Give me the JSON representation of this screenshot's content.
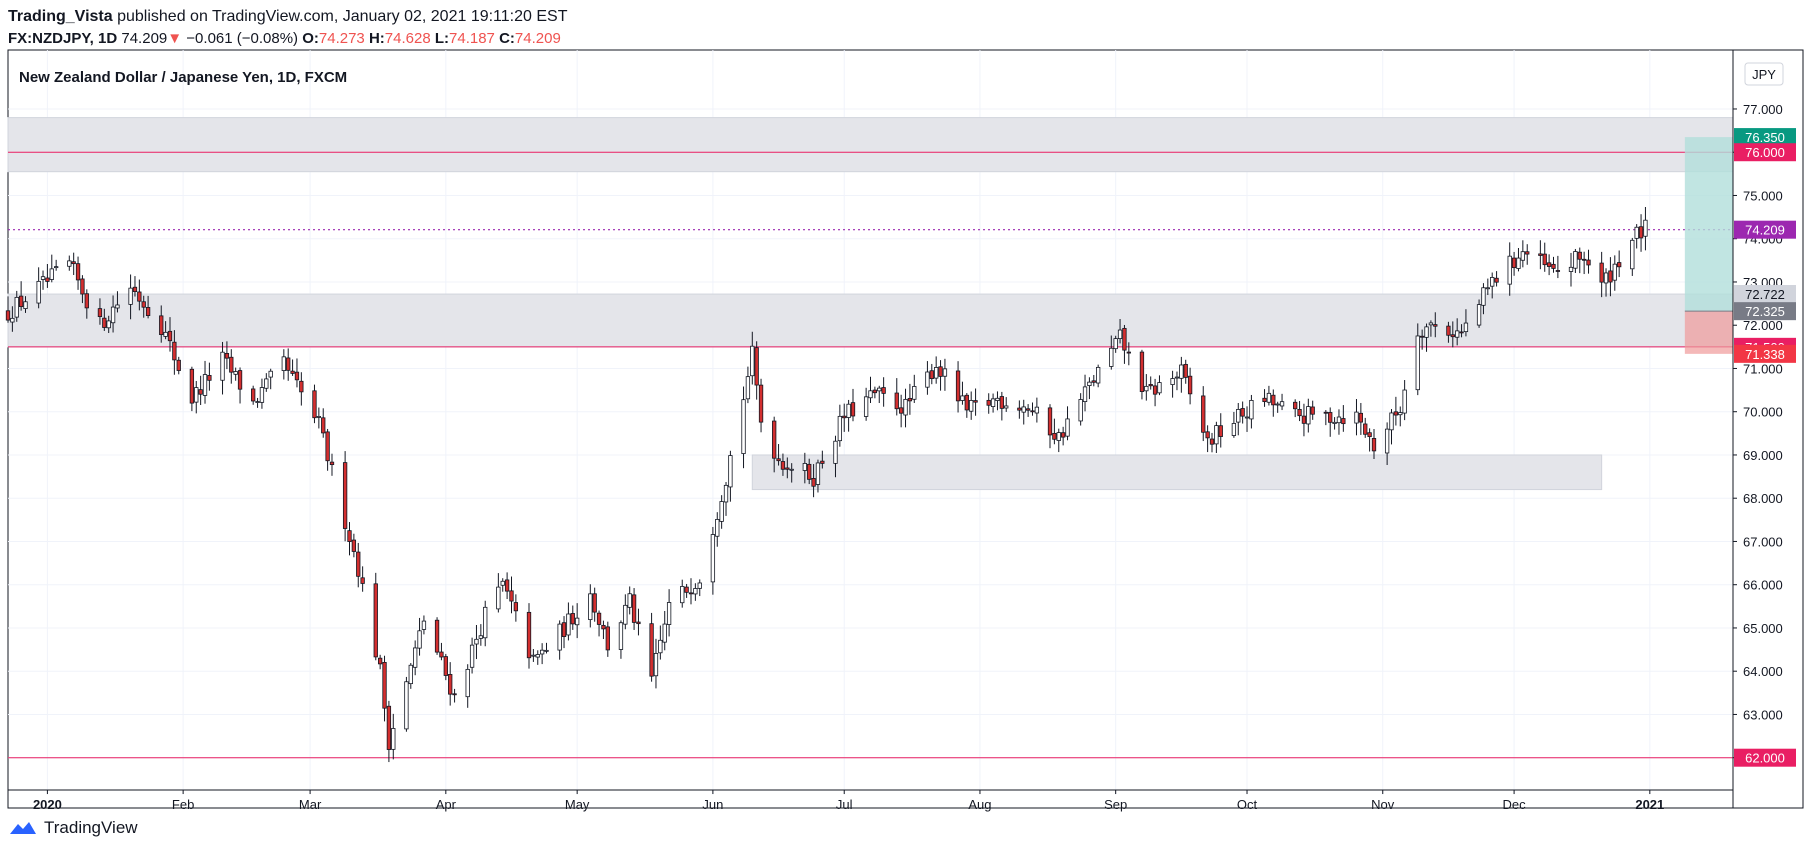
{
  "header": {
    "author": "Trading_Vista",
    "published_text": "published on TradingView.com, January 02, 2021 19:11:20 EST",
    "symbol": "FX:NZDJPY, 1D",
    "last": "74.209",
    "change_arrow": "▼",
    "change": "−0.061 (−0.08%)",
    "o_label": "O:",
    "o_value": "74.273",
    "h_label": "H:",
    "h_value": "74.628",
    "l_label": "L:",
    "l_value": "74.187",
    "c_label": "C:",
    "c_value": "74.209"
  },
  "chart_title": "New Zealand Dollar / Japanese Yen, 1D, FXCM",
  "currency_button": "JPY",
  "footer": {
    "brand": "TradingView",
    "logo_icon": "tradingview-logo-icon"
  },
  "colors": {
    "up_fill": "#ffffff",
    "down_fill": "#d32f2f",
    "wick": "#131722",
    "zone": "#e4e5ea",
    "level": "#e91e63",
    "current": "#9c27b0",
    "target_green": "#089981",
    "projection_fill": "#b2dfdb",
    "stop_fill": "#ef9a9a",
    "gray_tag": "#787b86"
  },
  "chart_data": {
    "type": "candlestick",
    "title": "New Zealand Dollar / Japanese Yen, 1D, FXCM",
    "yaxis_ticks": [
      "77.000",
      "76.000",
      "75.000",
      "74.000",
      "73.000",
      "72.000",
      "71.000",
      "70.000",
      "69.000",
      "68.000",
      "67.000",
      "66.000",
      "65.000",
      "64.000",
      "63.000",
      "62.000"
    ],
    "ylim": [
      61.6,
      77.3
    ],
    "xlim": [
      "2019-12-23",
      "2021-01-20"
    ],
    "x_ticks": [
      {
        "label": "2020",
        "date": "2020-01-01"
      },
      {
        "label": "Feb",
        "date": "2020-02-01"
      },
      {
        "label": "Mar",
        "date": "2020-03-01"
      },
      {
        "label": "Apr",
        "date": "2020-04-01"
      },
      {
        "label": "May",
        "date": "2020-05-01"
      },
      {
        "label": "Jun",
        "date": "2020-06-01"
      },
      {
        "label": "Jul",
        "date": "2020-07-01"
      },
      {
        "label": "Aug",
        "date": "2020-08-01"
      },
      {
        "label": "Sep",
        "date": "2020-09-01"
      },
      {
        "label": "Oct",
        "date": "2020-10-01"
      },
      {
        "label": "Nov",
        "date": "2020-11-01"
      },
      {
        "label": "Dec",
        "date": "2020-12-01"
      },
      {
        "label": "2021",
        "date": "2021-01-01"
      }
    ],
    "horizontal_levels": [
      {
        "label": "76.000",
        "value": 76.0
      },
      {
        "label": "71.500",
        "value": 71.5
      },
      {
        "label": "62.000",
        "value": 62.0
      }
    ],
    "zones": [
      {
        "from": 75.55,
        "to": 76.8,
        "start": "2019-12-23",
        "end": "2021-01-20"
      },
      {
        "from": 71.5,
        "to": 72.72,
        "start": "2019-12-23",
        "end": "2021-01-20"
      },
      {
        "from": 68.2,
        "to": 69.0,
        "start": "2020-06-10",
        "end": "2020-12-21"
      }
    ],
    "current_price": {
      "label": "74.209",
      "value": 74.209
    },
    "position": {
      "target": {
        "label": "76.350",
        "value": 76.35
      },
      "entry": {
        "label": "72.325",
        "value": 72.325
      },
      "stop": {
        "label": "71.338",
        "value": 71.338
      },
      "start": "2021-01-09",
      "end": "2021-01-20"
    },
    "extra_tags": [
      {
        "label": "72.722",
        "value": 72.722
      }
    ],
    "anchors": [
      [
        "2019-12-23",
        72.3
      ],
      [
        "2020-01-06",
        73.4
      ],
      [
        "2020-01-13",
        72.0
      ],
      [
        "2020-01-20",
        72.9
      ],
      [
        "2020-01-27",
        72.0
      ],
      [
        "2020-02-03",
        70.3
      ],
      [
        "2020-02-10",
        71.2
      ],
      [
        "2020-02-17",
        70.2
      ],
      [
        "2020-02-24",
        71.1
      ],
      [
        "2020-03-03",
        69.7
      ],
      [
        "2020-03-09",
        67.5
      ],
      [
        "2020-03-12",
        66.4
      ],
      [
        "2020-03-17",
        64.0
      ],
      [
        "2020-03-19",
        62.4
      ],
      [
        "2020-03-23",
        63.7
      ],
      [
        "2020-03-27",
        65.2
      ],
      [
        "2020-04-03",
        63.4
      ],
      [
        "2020-04-10",
        65.3
      ],
      [
        "2020-04-14",
        66.0
      ],
      [
        "2020-04-21",
        64.2
      ],
      [
        "2020-04-28",
        65.0
      ],
      [
        "2020-05-04",
        65.8
      ],
      [
        "2020-05-08",
        64.6
      ],
      [
        "2020-05-13",
        65.6
      ],
      [
        "2020-05-18",
        63.8
      ],
      [
        "2020-05-22",
        65.5
      ],
      [
        "2020-05-29",
        66.2
      ],
      [
        "2020-06-04",
        68.5
      ],
      [
        "2020-06-10",
        71.3
      ],
      [
        "2020-06-12",
        69.8
      ],
      [
        "2020-06-16",
        68.9
      ],
      [
        "2020-06-24",
        68.5
      ],
      [
        "2020-07-01",
        69.9
      ],
      [
        "2020-07-08",
        70.4
      ],
      [
        "2020-07-15",
        70.1
      ],
      [
        "2020-07-22",
        71.1
      ],
      [
        "2020-07-29",
        70.0
      ],
      [
        "2020-08-05",
        70.3
      ],
      [
        "2020-08-12",
        70.1
      ],
      [
        "2020-08-19",
        69.4
      ],
      [
        "2020-08-26",
        70.6
      ],
      [
        "2020-09-02",
        71.7
      ],
      [
        "2020-09-08",
        70.4
      ],
      [
        "2020-09-16",
        70.9
      ],
      [
        "2020-09-22",
        69.3
      ],
      [
        "2020-09-28",
        69.8
      ],
      [
        "2020-10-05",
        70.3
      ],
      [
        "2020-10-12",
        69.9
      ],
      [
        "2020-10-19",
        69.9
      ],
      [
        "2020-10-26",
        69.9
      ],
      [
        "2020-10-30",
        69.2
      ],
      [
        "2020-11-05",
        70.1
      ],
      [
        "2020-11-09",
        71.9
      ],
      [
        "2020-11-12",
        72.0
      ],
      [
        "2020-11-19",
        71.8
      ],
      [
        "2020-11-26",
        73.0
      ],
      [
        "2020-12-03",
        73.7
      ],
      [
        "2020-12-10",
        73.2
      ],
      [
        "2020-12-17",
        73.6
      ],
      [
        "2020-12-21",
        72.9
      ],
      [
        "2020-12-28",
        74.0
      ],
      [
        "2020-12-31",
        74.209
      ]
    ]
  }
}
